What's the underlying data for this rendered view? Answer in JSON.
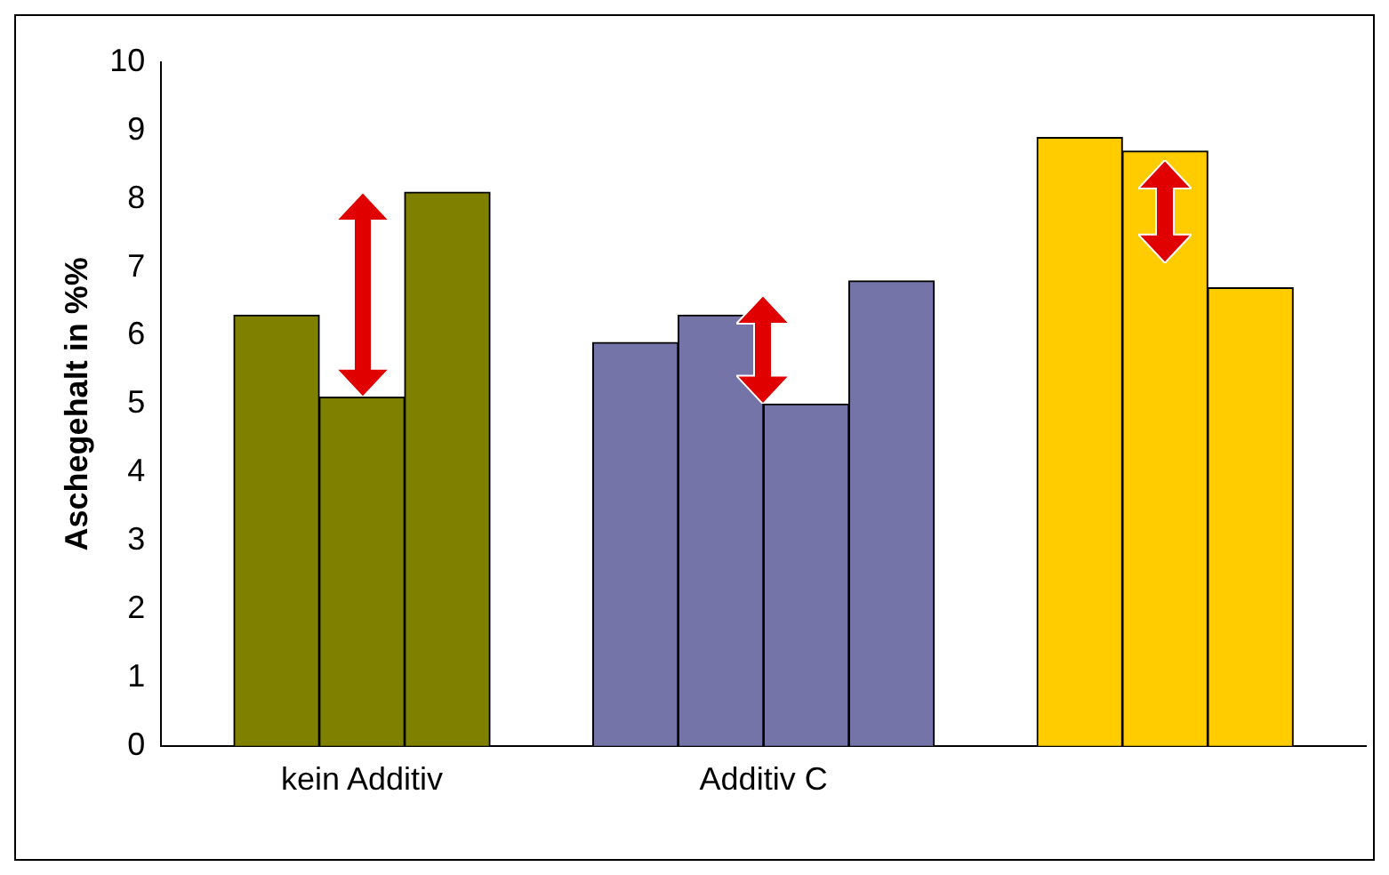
{
  "chart_data": {
    "type": "bar",
    "ylabel": "Aschegehalt in %%",
    "categories": [
      "kein Additiv",
      "Additiv C",
      null
    ],
    "series": [
      {
        "colors": [
          "#808000",
          "#7474a8",
          "#ffcc00"
        ],
        "values": [
          6.3,
          5.9,
          8.9
        ]
      },
      {
        "colors": [
          "#808000",
          "#7474a8",
          "#ffcc00"
        ],
        "values": [
          5.1,
          6.3,
          8.7
        ]
      },
      {
        "colors": [
          "#808000",
          "#7474a8",
          "#ffcc00"
        ],
        "values": [
          8.1,
          5.0,
          6.7
        ]
      },
      {
        "colors": [
          "#808000",
          "#7474a8",
          "#ffcc00"
        ],
        "values": [
          null,
          6.8,
          null
        ]
      }
    ],
    "ylim": [
      0,
      10
    ],
    "yticks": [
      0,
      1,
      2,
      3,
      4,
      5,
      6,
      7,
      8,
      9,
      10
    ],
    "grid": false,
    "legend": false
  }
}
